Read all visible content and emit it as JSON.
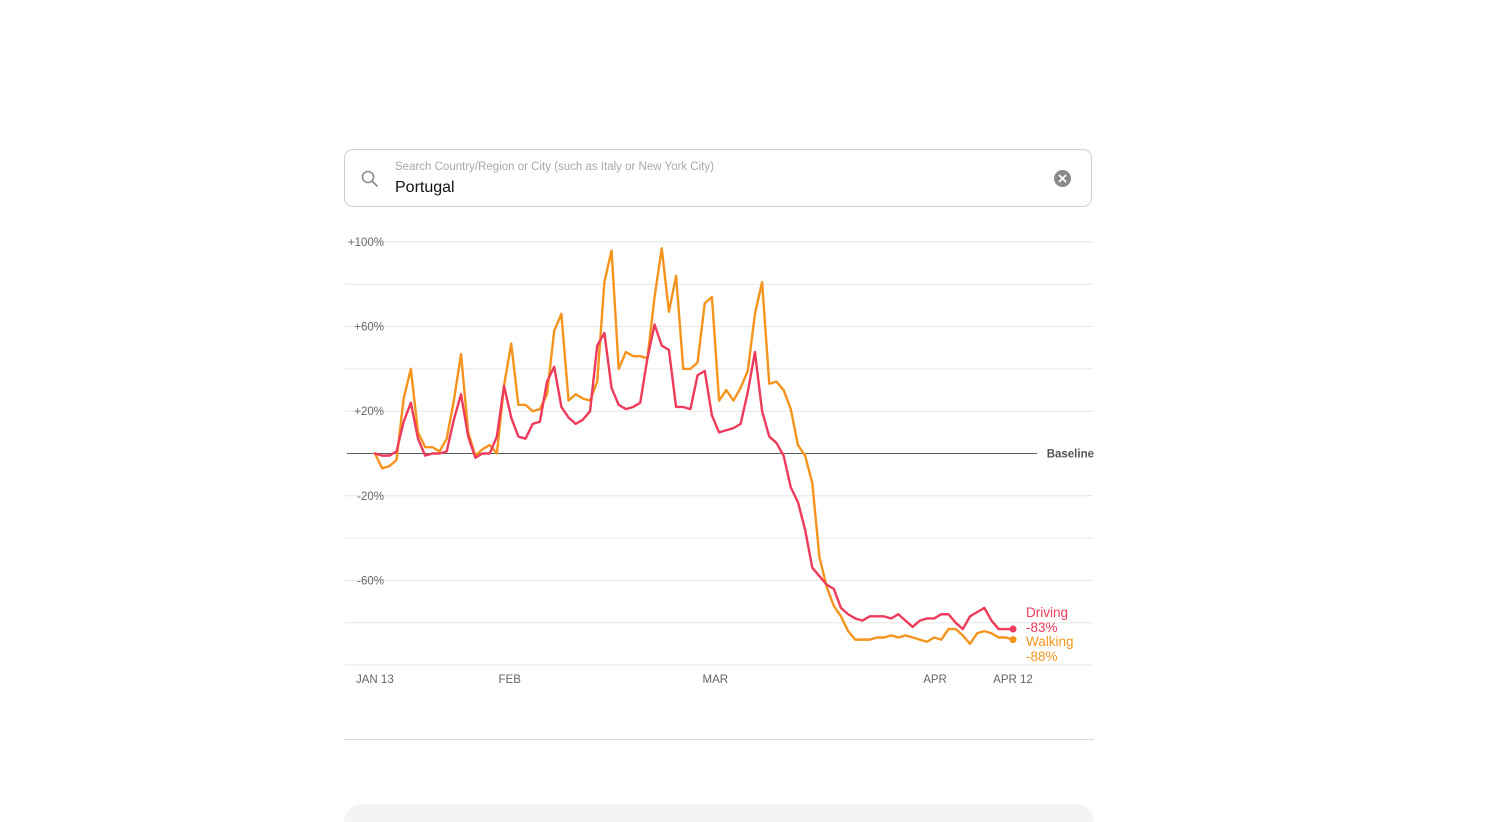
{
  "search": {
    "placeholder": "Search Country/Region or City (such as Italy or New York City)",
    "value": "Portugal",
    "search_icon": "search-icon",
    "clear_icon": "close-circle-icon"
  },
  "chart_data": {
    "type": "line",
    "title": "",
    "xlabel": "",
    "ylabel": "",
    "x_range": [
      "2020-01-13",
      "2020-04-12"
    ],
    "x_ticks": [
      {
        "label": "JAN 13",
        "date": "2020-01-13"
      },
      {
        "label": "FEB",
        "date": "2020-02-01"
      },
      {
        "label": "MAR",
        "date": "2020-03-01"
      },
      {
        "label": "APR",
        "date": "2020-04-01"
      },
      {
        "label": "APR 12",
        "date": "2020-04-12"
      }
    ],
    "y_ticks": [
      {
        "label": "+100%",
        "value": 100
      },
      {
        "label": "+60%",
        "value": 60
      },
      {
        "label": "+20%",
        "value": 20
      },
      {
        "label": "-20%",
        "value": -20
      },
      {
        "label": "-60%",
        "value": -60
      }
    ],
    "ylim": [
      -100,
      100
    ],
    "gridlines": [
      100,
      80,
      60,
      40,
      20,
      -20,
      -40,
      -60,
      -80,
      -100
    ],
    "grid": true,
    "baseline": {
      "value": 0,
      "label": "Baseline"
    },
    "series": [
      {
        "name": "Driving",
        "color": "#ee3b5b",
        "end_label": "-83%",
        "values": [
          0,
          -1,
          -1,
          1,
          15,
          24,
          7,
          -1,
          0,
          0,
          1,
          16,
          28,
          8,
          -2,
          0,
          0,
          8,
          32,
          17,
          8,
          7,
          14,
          15,
          34,
          41,
          22,
          17,
          14,
          16,
          20,
          51,
          57,
          31,
          23,
          21,
          22,
          24,
          45,
          61,
          51,
          49,
          22,
          22,
          21,
          37,
          39,
          18,
          10,
          11,
          12,
          14,
          29,
          48,
          20,
          8,
          5,
          -1,
          -16,
          -23,
          -36,
          -54,
          -58,
          -62,
          -64,
          -73,
          -76,
          -78,
          -79,
          -77,
          -77,
          -77,
          -78,
          -76,
          -79,
          -82,
          -79,
          -78,
          -78,
          -76,
          -76,
          -80,
          -83,
          -77,
          -75,
          -73,
          -79,
          -83,
          -83,
          -83
        ]
      },
      {
        "name": "Walking",
        "color": "#f5941d",
        "end_label": "-88%",
        "values": [
          0,
          -7,
          -6,
          -3,
          26,
          40,
          10,
          3,
          3,
          1,
          7,
          25,
          47,
          10,
          -1,
          2,
          4,
          0,
          32,
          52,
          23,
          23,
          20,
          21,
          28,
          58,
          66,
          25,
          28,
          26,
          25,
          34,
          81,
          96,
          40,
          48,
          46,
          46,
          45,
          74,
          97,
          67,
          84,
          40,
          40,
          43,
          71,
          74,
          25,
          30,
          25,
          31,
          39,
          66,
          81,
          33,
          34,
          30,
          21,
          4,
          -1,
          -14,
          -49,
          -63,
          -72,
          -77,
          -84,
          -88,
          -88,
          -88,
          -87,
          -87,
          -86,
          -87,
          -86,
          -87,
          -88,
          -89,
          -87,
          -88,
          -83,
          -83,
          -86,
          -90,
          -85,
          -84,
          -85,
          -87,
          -87,
          -88
        ]
      }
    ],
    "legend": "end-of-line labels, right"
  }
}
